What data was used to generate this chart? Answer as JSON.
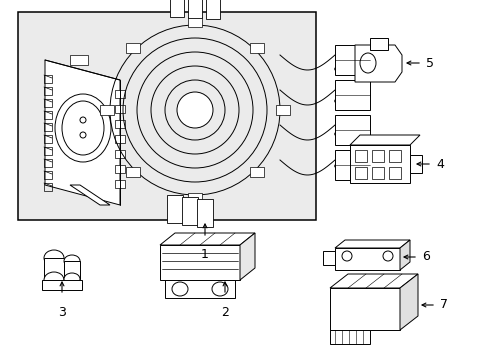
{
  "bg_color": "#ffffff",
  "box_bg": "#ebebeb",
  "line_color": "#000000",
  "lw": 0.7
}
